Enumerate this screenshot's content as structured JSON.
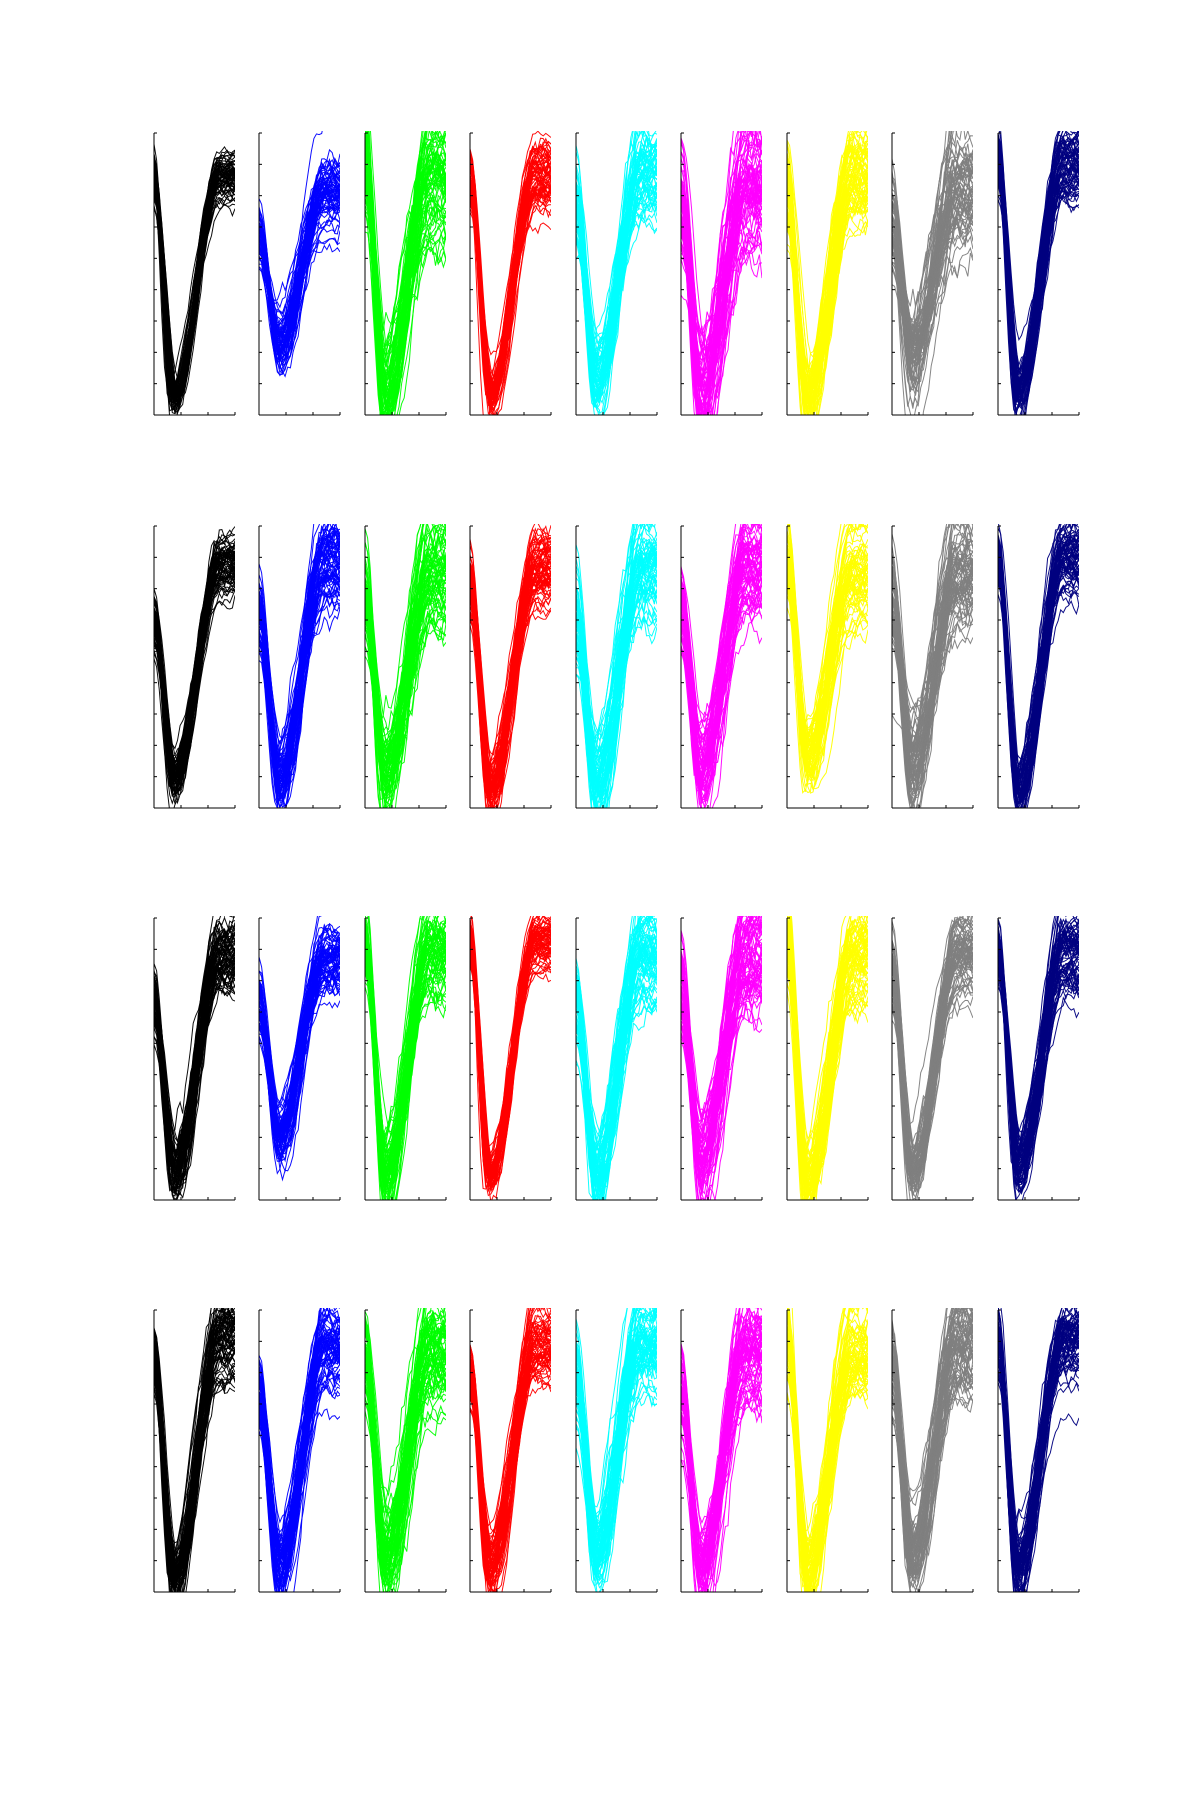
{
  "chart_data": {
    "type": "line",
    "title": "",
    "description_of_layout": "grid",
    "grid_rows": 4,
    "grid_cols": 9,
    "colors": [
      "#000000",
      "#0000ff",
      "#00ff00",
      "#ff0000",
      "#00ffff",
      "#ff00ff",
      "#ffff00",
      "#808080",
      "#000080"
    ],
    "color_names": [
      "black",
      "blue",
      "green",
      "red",
      "cyan",
      "magenta",
      "yellow",
      "gray",
      "navy"
    ],
    "grid": false,
    "legend": "none",
    "tick_labels": false,
    "waveforms_per_panel": 70,
    "samples_per_waveform": 32,
    "panels": [
      {
        "row": 0,
        "col": 0,
        "color": "#000000",
        "start": 0.72,
        "trough": -0.92,
        "trough_pos": 0.25,
        "end": 0.74,
        "spread": 0.09
      },
      {
        "row": 0,
        "col": 1,
        "color": "#0000ff",
        "start": 0.3,
        "trough": -0.52,
        "trough_pos": 0.25,
        "end": 0.6,
        "spread": 0.13
      },
      {
        "row": 0,
        "col": 2,
        "color": "#00ff00",
        "start": 0.85,
        "trough": -0.9,
        "trough_pos": 0.25,
        "end": 0.72,
        "spread": 0.22
      },
      {
        "row": 0,
        "col": 3,
        "color": "#ff0000",
        "start": 0.7,
        "trough": -0.9,
        "trough_pos": 0.25,
        "end": 0.72,
        "spread": 0.12
      },
      {
        "row": 0,
        "col": 4,
        "color": "#00ffff",
        "start": 0.52,
        "trough": -0.78,
        "trough_pos": 0.25,
        "end": 0.78,
        "spread": 0.18
      },
      {
        "row": 0,
        "col": 5,
        "color": "#ff00ff",
        "start": 0.48,
        "trough": -0.9,
        "trough_pos": 0.25,
        "end": 0.62,
        "spread": 0.25
      },
      {
        "row": 0,
        "col": 6,
        "color": "#ffff00",
        "start": 0.6,
        "trough": -0.92,
        "trough_pos": 0.25,
        "end": 0.72,
        "spread": 0.18
      },
      {
        "row": 0,
        "col": 7,
        "color": "#808080",
        "start": 0.4,
        "trough": -0.6,
        "trough_pos": 0.25,
        "end": 0.66,
        "spread": 0.22
      },
      {
        "row": 0,
        "col": 8,
        "color": "#000080",
        "start": 0.82,
        "trough": -0.9,
        "trough_pos": 0.25,
        "end": 0.82,
        "spread": 0.13
      },
      {
        "row": 1,
        "col": 0,
        "color": "#000000",
        "start": 0.32,
        "trough": -0.82,
        "trough_pos": 0.25,
        "end": 0.74,
        "spread": 0.11
      },
      {
        "row": 1,
        "col": 1,
        "color": "#0000ff",
        "start": 0.42,
        "trough": -0.82,
        "trough_pos": 0.25,
        "end": 0.8,
        "spread": 0.16
      },
      {
        "row": 1,
        "col": 2,
        "color": "#00ff00",
        "start": 0.52,
        "trough": -0.82,
        "trough_pos": 0.25,
        "end": 0.76,
        "spread": 0.22
      },
      {
        "row": 1,
        "col": 3,
        "color": "#ff0000",
        "start": 0.62,
        "trough": -0.92,
        "trough_pos": 0.25,
        "end": 0.72,
        "spread": 0.14
      },
      {
        "row": 1,
        "col": 4,
        "color": "#00ffff",
        "start": 0.42,
        "trough": -0.88,
        "trough_pos": 0.25,
        "end": 0.82,
        "spread": 0.2
      },
      {
        "row": 1,
        "col": 5,
        "color": "#ff00ff",
        "start": 0.46,
        "trough": -0.76,
        "trough_pos": 0.25,
        "end": 0.72,
        "spread": 0.18
      },
      {
        "row": 1,
        "col": 6,
        "color": "#ffff00",
        "start": 0.76,
        "trough": -0.7,
        "trough_pos": 0.25,
        "end": 0.72,
        "spread": 0.16
      },
      {
        "row": 1,
        "col": 7,
        "color": "#808080",
        "start": 0.52,
        "trough": -0.72,
        "trough_pos": 0.25,
        "end": 0.72,
        "spread": 0.2
      },
      {
        "row": 1,
        "col": 8,
        "color": "#000080",
        "start": 0.82,
        "trough": -0.92,
        "trough_pos": 0.25,
        "end": 0.8,
        "spread": 0.13
      },
      {
        "row": 2,
        "col": 0,
        "color": "#000000",
        "start": 0.45,
        "trough": -0.82,
        "trough_pos": 0.25,
        "end": 0.74,
        "spread": 0.15
      },
      {
        "row": 2,
        "col": 1,
        "color": "#0000ff",
        "start": 0.4,
        "trough": -0.6,
        "trough_pos": 0.25,
        "end": 0.72,
        "spread": 0.13
      },
      {
        "row": 2,
        "col": 2,
        "color": "#00ff00",
        "start": 0.84,
        "trough": -0.9,
        "trough_pos": 0.25,
        "end": 0.76,
        "spread": 0.18
      },
      {
        "row": 2,
        "col": 3,
        "color": "#ff0000",
        "start": 0.88,
        "trough": -0.86,
        "trough_pos": 0.25,
        "end": 0.88,
        "spread": 0.1
      },
      {
        "row": 2,
        "col": 4,
        "color": "#00ffff",
        "start": 0.42,
        "trough": -0.9,
        "trough_pos": 0.25,
        "end": 0.82,
        "spread": 0.2
      },
      {
        "row": 2,
        "col": 5,
        "color": "#ff00ff",
        "start": 0.52,
        "trough": -0.78,
        "trough_pos": 0.25,
        "end": 0.74,
        "spread": 0.2
      },
      {
        "row": 2,
        "col": 6,
        "color": "#ffff00",
        "start": 0.86,
        "trough": -0.92,
        "trough_pos": 0.25,
        "end": 0.72,
        "spread": 0.18
      },
      {
        "row": 2,
        "col": 7,
        "color": "#808080",
        "start": 0.66,
        "trough": -0.82,
        "trough_pos": 0.25,
        "end": 0.78,
        "spread": 0.15
      },
      {
        "row": 2,
        "col": 8,
        "color": "#000080",
        "start": 0.8,
        "trough": -0.82,
        "trough_pos": 0.25,
        "end": 0.8,
        "spread": 0.15
      },
      {
        "row": 3,
        "col": 0,
        "color": "#000000",
        "start": 0.72,
        "trough": -0.92,
        "trough_pos": 0.25,
        "end": 0.8,
        "spread": 0.14
      },
      {
        "row": 3,
        "col": 1,
        "color": "#0000ff",
        "start": 0.4,
        "trough": -0.86,
        "trough_pos": 0.25,
        "end": 0.78,
        "spread": 0.15
      },
      {
        "row": 3,
        "col": 2,
        "color": "#00ff00",
        "start": 0.68,
        "trough": -0.82,
        "trough_pos": 0.25,
        "end": 0.78,
        "spread": 0.22
      },
      {
        "row": 3,
        "col": 3,
        "color": "#ff0000",
        "start": 0.55,
        "trough": -0.85,
        "trough_pos": 0.25,
        "end": 0.8,
        "spread": 0.13
      },
      {
        "row": 3,
        "col": 4,
        "color": "#00ffff",
        "start": 0.55,
        "trough": -0.72,
        "trough_pos": 0.25,
        "end": 0.82,
        "spread": 0.2
      },
      {
        "row": 3,
        "col": 5,
        "color": "#ff00ff",
        "start": 0.4,
        "trough": -0.86,
        "trough_pos": 0.25,
        "end": 0.74,
        "spread": 0.2
      },
      {
        "row": 3,
        "col": 6,
        "color": "#ffff00",
        "start": 0.86,
        "trough": -0.92,
        "trough_pos": 0.25,
        "end": 0.76,
        "spread": 0.18
      },
      {
        "row": 3,
        "col": 7,
        "color": "#808080",
        "start": 0.62,
        "trough": -0.82,
        "trough_pos": 0.25,
        "end": 0.78,
        "spread": 0.2
      },
      {
        "row": 3,
        "col": 8,
        "color": "#000080",
        "start": 0.82,
        "trough": -0.9,
        "trough_pos": 0.25,
        "end": 0.82,
        "spread": 0.15
      }
    ]
  }
}
